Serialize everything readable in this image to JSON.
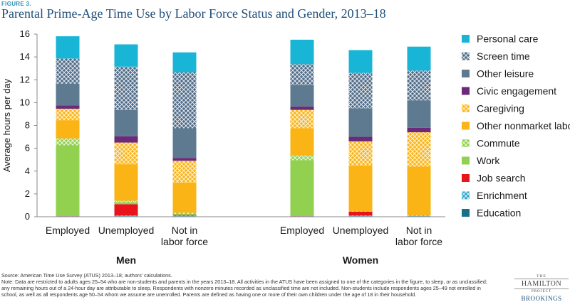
{
  "figure_label": "FIGURE 3.",
  "source": "Source: American Time Use Survey (ATUS) 2013–18; authors' calculations.",
  "notes": [
    "Note: Data are restricted to adults ages 25–54 who are non-students and parents in the years 2013–18. All activities in the ATUS have been assigned to one of the categories in the figure, to sleep, or as unclassified;",
    "any remaining hours out of a 24-hour day are attributable to sleep. Respondents with nonzero minutes recorded as unclassified time are not included. Non-students include respondents ages 25–49 not enrolled in",
    "school, as well as all respondents age 50–54 whom we assume are unenrolled. Parents are defined as having one or more of their own children under the age of 18 in their household."
  ],
  "logo": {
    "the": "THE",
    "hamilton": "HAMILTON",
    "project": "PROJECT",
    "brookings": "BROOKINGS"
  },
  "colors": {
    "Education": "#1a6f8a",
    "Enrichment": "#2aa3c9",
    "Job search": "#e8131b",
    "Work": "#92d050",
    "Commute": "#92d050",
    "Other nonmarket labor": "#fbb416",
    "Caregiving": "#fbb416",
    "Civic engagement": "#6b2a7a",
    "Other leisure": "#5e7a90",
    "Screen time": "#4f6b88",
    "Personal care": "#18b5d6"
  },
  "chart_data": {
    "type": "bar",
    "stacked": true,
    "title": "Parental Prime-Age Time Use by Labor Force Status and Gender, 2013–18",
    "ylabel": "Average hours per day",
    "ylim": [
      0,
      16
    ],
    "yticks": [
      0,
      2,
      4,
      6,
      8,
      10,
      12,
      14,
      16
    ],
    "grid": false,
    "legend_position": "right",
    "groups": [
      "Men",
      "Women"
    ],
    "categories": [
      {
        "group": "Men",
        "label": [
          "Employed"
        ]
      },
      {
        "group": "Men",
        "label": [
          "Unemployed"
        ]
      },
      {
        "group": "Men",
        "label": [
          "Not in",
          "labor force"
        ]
      },
      {
        "group": "Women",
        "label": [
          "Employed"
        ]
      },
      {
        "group": "Women",
        "label": [
          "Unemployed"
        ]
      },
      {
        "group": "Women",
        "label": [
          "Not in",
          "labor force"
        ]
      }
    ],
    "series": [
      {
        "name": "Education",
        "pattern": "solid",
        "values": [
          0.02,
          0.05,
          0.05,
          0.02,
          0.05,
          0.05
        ]
      },
      {
        "name": "Enrichment",
        "pattern": "hatch",
        "values": [
          0.03,
          0.05,
          0.05,
          0.03,
          0.05,
          0.05
        ]
      },
      {
        "name": "Job search",
        "pattern": "solid",
        "values": [
          0.01,
          1.0,
          0.05,
          0.01,
          0.35,
          0.0
        ]
      },
      {
        "name": "Work",
        "pattern": "solid",
        "values": [
          6.2,
          0.15,
          0.1,
          4.9,
          0.0,
          0.0
        ]
      },
      {
        "name": "Commute",
        "pattern": "hatch",
        "values": [
          0.6,
          0.15,
          0.1,
          0.4,
          0.05,
          0.0
        ]
      },
      {
        "name": "Other nonmarket labor",
        "pattern": "solid",
        "values": [
          1.6,
          3.2,
          2.65,
          2.4,
          4.0,
          4.3
        ]
      },
      {
        "name": "Caregiving",
        "pattern": "hatch",
        "values": [
          1.0,
          1.9,
          1.9,
          1.6,
          2.1,
          3.0
        ]
      },
      {
        "name": "Civic engagement",
        "pattern": "solid",
        "values": [
          0.3,
          0.55,
          0.25,
          0.3,
          0.4,
          0.4
        ]
      },
      {
        "name": "Other leisure",
        "pattern": "solid",
        "values": [
          1.9,
          2.3,
          2.6,
          1.9,
          2.5,
          2.4
        ]
      },
      {
        "name": "Screen time",
        "pattern": "hatch",
        "values": [
          2.2,
          3.8,
          4.9,
          1.8,
          3.1,
          2.6
        ]
      },
      {
        "name": "Personal care",
        "pattern": "solid",
        "values": [
          1.95,
          1.95,
          1.75,
          2.15,
          2.0,
          2.1
        ]
      }
    ]
  }
}
